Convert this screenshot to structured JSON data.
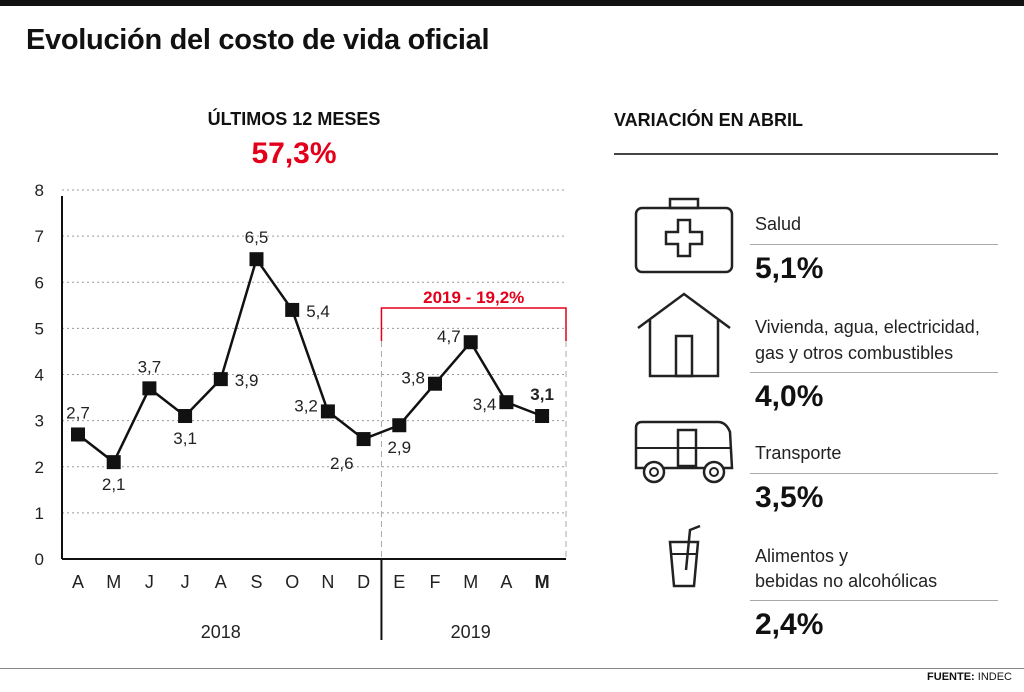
{
  "title": "Evolución del costo de vida oficial",
  "left_panel": {
    "subtitle": "ÚLTIMOS 12 MESES",
    "headline_value": "57,3%"
  },
  "chart_data": {
    "type": "line",
    "categories": [
      "A",
      "M",
      "J",
      "J",
      "A",
      "S",
      "O",
      "N",
      "D",
      "E",
      "F",
      "M",
      "A",
      "M"
    ],
    "values": [
      2.7,
      2.1,
      3.7,
      3.1,
      3.9,
      6.5,
      5.4,
      3.2,
      2.6,
      2.9,
      3.8,
      4.7,
      3.4,
      3.1
    ],
    "value_labels": [
      "2,7",
      "2,1",
      "3,7",
      "3,1",
      "3,9",
      "6,5",
      "5,4",
      "3,2",
      "2,6",
      "2,9",
      "3,8",
      "4,7",
      "3,4",
      "3,1"
    ],
    "bold_last": true,
    "ylim": [
      0,
      8
    ],
    "yticks": [
      "0",
      "1",
      "2",
      "3",
      "4",
      "5",
      "6",
      "7",
      "8"
    ],
    "grid": true,
    "year_groups": [
      {
        "label": "2018",
        "start_index": 0,
        "end_index": 8
      },
      {
        "label": "2019",
        "start_index": 9,
        "end_index": 13
      }
    ],
    "highlight": {
      "label": "2019 - 19,2%",
      "start_index": 9,
      "end_index": 13
    },
    "colors": {
      "line": "#111111",
      "marker": "#111111",
      "accent": "#e3001b",
      "grid": "#9a9a9a"
    }
  },
  "right_panel": {
    "title": "VARIACIÓN EN ABRIL",
    "categories": [
      {
        "name_lines": [
          "Salud"
        ],
        "value": "5,1%",
        "icon": "medical-kit-icon"
      },
      {
        "name_lines": [
          "Vivienda, agua, electricidad,",
          "gas y otros combustibles"
        ],
        "value": "4,0%",
        "icon": "house-icon"
      },
      {
        "name_lines": [
          "Transporte"
        ],
        "value": "3,5%",
        "icon": "bus-icon"
      },
      {
        "name_lines": [
          "Alimentos y",
          "bebidas no alcohólicas"
        ],
        "value": "2,4%",
        "icon": "drink-icon"
      }
    ]
  },
  "source": {
    "label": "FUENTE:",
    "text": "INDEC"
  }
}
